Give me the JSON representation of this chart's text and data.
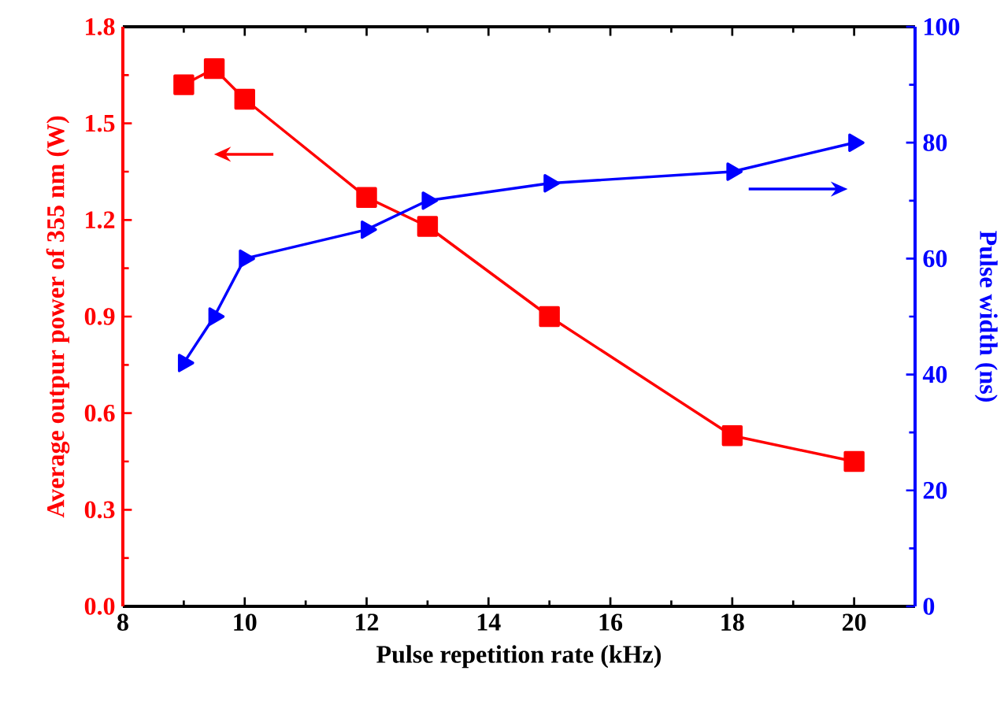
{
  "chart_data": {
    "type": "line",
    "xlabel": "Pulse repetition rate (kHz)",
    "ylabel": "Average outpur power of 355 nm (W)",
    "y2label": "Pulse width (ns)",
    "xlim": [
      8,
      21
    ],
    "xticks": [
      8,
      10,
      12,
      14,
      16,
      18,
      20
    ],
    "ylim": [
      0,
      1.8
    ],
    "yticks": [
      {
        "value": 0,
        "label": "0.0"
      },
      {
        "value": 0.3,
        "label": "0.3"
      },
      {
        "value": 0.6,
        "label": "0.6"
      },
      {
        "value": 0.9,
        "label": "0.9"
      },
      {
        "value": 1.2,
        "label": "1.2"
      },
      {
        "value": 1.5,
        "label": "1.5"
      },
      {
        "value": 1.8,
        "label": "1.8"
      }
    ],
    "y2lim": [
      0,
      100
    ],
    "y2ticks": [
      0,
      20,
      40,
      60,
      80,
      100
    ],
    "line_style": "solid",
    "series": [
      {
        "color": "#ff0000",
        "marker": "square",
        "x": [
          9,
          9.5,
          10,
          12,
          13,
          15,
          18,
          20
        ],
        "values": [
          1.62,
          1.67,
          1.575,
          1.27,
          1.18,
          0.9,
          0.53,
          0.45
        ]
      },
      {
        "color": "#0000ff",
        "marker": "triangle",
        "axis": "y2",
        "x": [
          9,
          9.5,
          10,
          12,
          13,
          15,
          18,
          20
        ],
        "values": [
          42,
          50,
          60,
          65,
          70,
          73,
          75,
          80
        ]
      }
    ]
  }
}
